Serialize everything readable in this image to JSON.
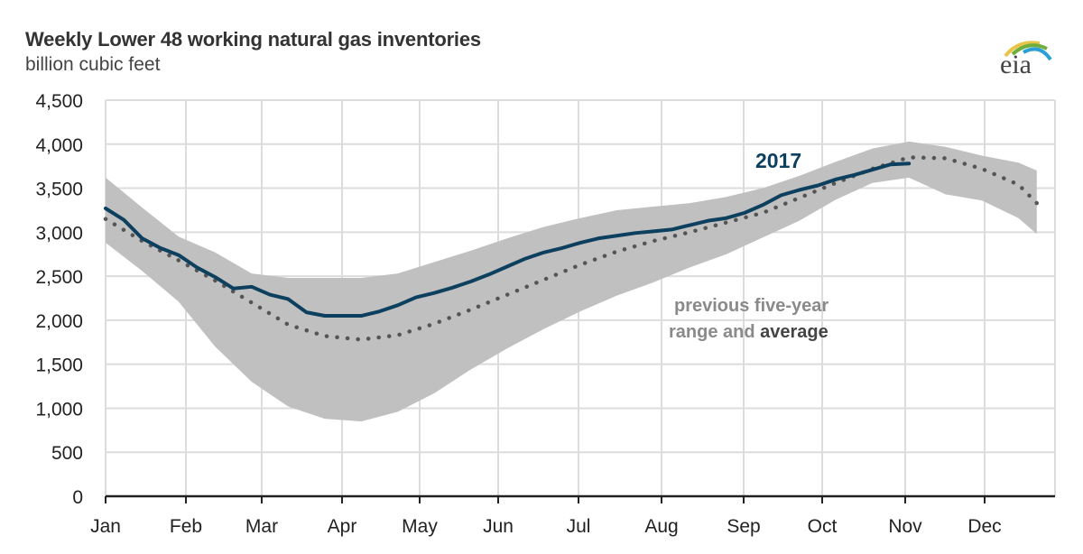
{
  "header": {
    "title": "Weekly Lower 48 working natural gas inventories",
    "subtitle": "billion cubic feet",
    "logo_text": "eia",
    "logo_icon": "eia-arc-logo-icon"
  },
  "colors": {
    "series_2017": "#0d3f5e",
    "range_band": "#c0c0c0",
    "average_dots": "#555555",
    "grid": "#dcdcdc",
    "axis": "#222222",
    "range_label": "#8a8a8a",
    "average_label": "#444444"
  },
  "annotations": {
    "series_label": "2017",
    "range_label_line1": "previous five-year",
    "range_label_line2_a": "range and ",
    "range_label_line2_b": "average"
  },
  "chart_data": {
    "type": "line",
    "title": "Weekly Lower 48 working natural gas inventories",
    "subtitle": "billion cubic feet",
    "xlabel": "",
    "ylabel": "billion cubic feet",
    "ylim": [
      0,
      4500
    ],
    "yticks": [
      0,
      500,
      1000,
      1500,
      2000,
      2500,
      3000,
      3500,
      4000,
      4500
    ],
    "ytick_labels": [
      "0",
      "500",
      "1,000",
      "1,500",
      "2,000",
      "2,500",
      "3,000",
      "3,500",
      "4,000",
      "4,500"
    ],
    "xticks": [
      "Jan",
      "Feb",
      "Mar",
      "Apr",
      "May",
      "Jun",
      "Jul",
      "Aug",
      "Sep",
      "Oct",
      "Nov",
      "Dec"
    ],
    "grid": true,
    "legend": "inline annotations",
    "x_unit": "week of year (1-52)",
    "series": [
      {
        "name": "2017",
        "style": "solid",
        "x": [
          1,
          2,
          3,
          4,
          5,
          6,
          7,
          8,
          9,
          10,
          11,
          12,
          13,
          14,
          15,
          16,
          17,
          18,
          19,
          20,
          21,
          22,
          23,
          24,
          25,
          26,
          27,
          28,
          29,
          30,
          31,
          32,
          33,
          34,
          35,
          36,
          37,
          38,
          39,
          40,
          41,
          42,
          43,
          44,
          45
        ],
        "values": [
          3270,
          3140,
          2930,
          2820,
          2740,
          2600,
          2490,
          2360,
          2380,
          2290,
          2240,
          2090,
          2050,
          2050,
          2050,
          2100,
          2170,
          2260,
          2310,
          2370,
          2440,
          2520,
          2610,
          2700,
          2770,
          2820,
          2880,
          2930,
          2960,
          2990,
          3010,
          3030,
          3080,
          3130,
          3160,
          3220,
          3310,
          3420,
          3480,
          3530,
          3600,
          3650,
          3710,
          3770,
          3780
        ]
      },
      {
        "name": "previous five-year average",
        "style": "dotted",
        "x": [
          1,
          3,
          5,
          7,
          9,
          11,
          13,
          15,
          17,
          19,
          21,
          23,
          25,
          27,
          29,
          31,
          33,
          35,
          37,
          39,
          41,
          43,
          45,
          47,
          49,
          51,
          52
        ],
        "values": [
          3150,
          2900,
          2680,
          2450,
          2200,
          1950,
          1820,
          1780,
          1830,
          1960,
          2120,
          2290,
          2460,
          2630,
          2780,
          2900,
          3000,
          3110,
          3220,
          3390,
          3560,
          3720,
          3850,
          3840,
          3720,
          3540,
          3330
        ]
      },
      {
        "name": "previous five-year range (max)",
        "style": "band-upper",
        "x": [
          1,
          3,
          5,
          7,
          9,
          11,
          13,
          15,
          17,
          19,
          21,
          23,
          25,
          27,
          29,
          31,
          33,
          35,
          37,
          39,
          41,
          43,
          45,
          47,
          49,
          51,
          52
        ],
        "values": [
          3620,
          3280,
          2950,
          2770,
          2530,
          2480,
          2480,
          2480,
          2530,
          2660,
          2790,
          2930,
          3060,
          3160,
          3250,
          3290,
          3330,
          3400,
          3500,
          3640,
          3800,
          3950,
          4030,
          3970,
          3870,
          3790,
          3700
        ]
      },
      {
        "name": "previous five-year range (min)",
        "style": "band-lower",
        "x": [
          1,
          3,
          5,
          7,
          9,
          11,
          13,
          15,
          17,
          19,
          21,
          23,
          25,
          27,
          29,
          31,
          33,
          35,
          37,
          39,
          41,
          43,
          45,
          47,
          49,
          51,
          52
        ],
        "values": [
          2880,
          2560,
          2210,
          1700,
          1300,
          1020,
          880,
          850,
          960,
          1170,
          1440,
          1680,
          1900,
          2100,
          2280,
          2430,
          2600,
          2750,
          2940,
          3130,
          3370,
          3560,
          3620,
          3430,
          3360,
          3160,
          2980
        ]
      }
    ]
  }
}
